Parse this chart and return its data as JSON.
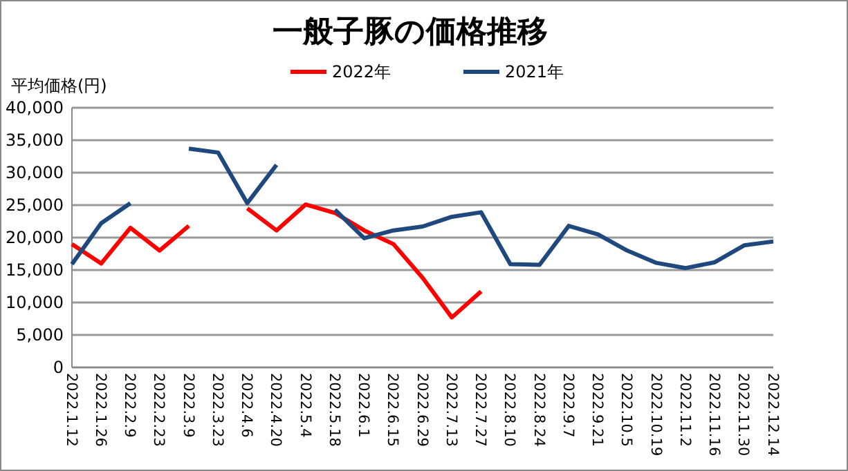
{
  "chart_data": {
    "type": "line",
    "title": "一般子豚の価格推移",
    "ylabel": "平均価格(円)",
    "categories": [
      "2022.1.12",
      "2022.1.26",
      "2022.2.9",
      "2022.2.23",
      "2022.3.9",
      "2022.3.23",
      "2022.4.6",
      "2022.4.20",
      "2022.5.4",
      "2022.5.18",
      "2022.6.1",
      "2022.6.15",
      "2022.6.29",
      "2022.7.13",
      "2022.7.27",
      "2022.8.10",
      "2022.8.24",
      "2022.9.7",
      "2022.9.21",
      "2022.10.5",
      "2022.10.19",
      "2022.11.2",
      "2022.11.16",
      "2022.11.30",
      "2022.12.14"
    ],
    "series": [
      {
        "name": "2022年",
        "color": "#ff0000",
        "values": [
          19000,
          16000,
          21500,
          18000,
          21800,
          null,
          24500,
          21100,
          25100,
          23800,
          21100,
          19000,
          13800,
          7700,
          11700,
          null,
          null,
          null,
          null,
          null,
          null,
          null,
          null,
          null,
          null
        ]
      },
      {
        "name": "2021年",
        "color": "#1f497d",
        "values": [
          15900,
          22200,
          25300,
          null,
          33700,
          33100,
          25300,
          31200,
          null,
          24300,
          19900,
          21100,
          21700,
          23200,
          23900,
          15900,
          15800,
          21800,
          20500,
          18000,
          16100,
          15300,
          16200,
          18800,
          19400
        ]
      }
    ],
    "ylim": [
      0,
      40000
    ],
    "yticks": [
      {
        "value": 0,
        "label": "0"
      },
      {
        "value": 5000,
        "label": "5,000"
      },
      {
        "value": 10000,
        "label": "10,000"
      },
      {
        "value": 15000,
        "label": "15,000"
      },
      {
        "value": 20000,
        "label": "20,000"
      },
      {
        "value": 25000,
        "label": "25,000"
      },
      {
        "value": 30000,
        "label": "30,000"
      },
      {
        "value": 35000,
        "label": "35,000"
      },
      {
        "value": 40000,
        "label": "40,000"
      }
    ],
    "grid": "y",
    "legend": "top",
    "marker": "none",
    "line_style": "solid"
  }
}
